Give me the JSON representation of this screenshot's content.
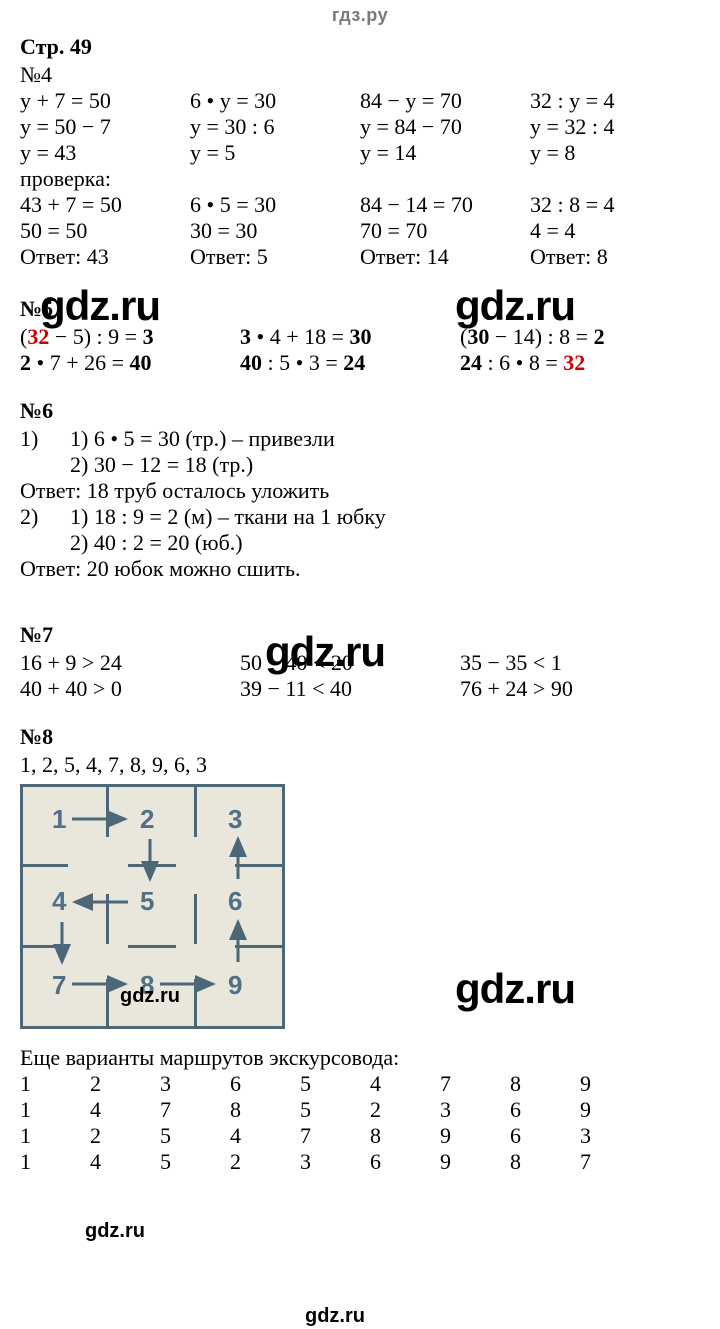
{
  "header": "гдз.ру",
  "page_ref": "Стр. 49",
  "watermarks": {
    "big": "gdz.ru",
    "small": "gdz.ru"
  },
  "p4": {
    "label": "№4",
    "cols": [
      [
        "у + 7 = 50",
        "у = 50 − 7",
        "у = 43"
      ],
      [
        "6 • у = 30",
        "у = 30 : 6",
        "у = 5"
      ],
      [
        "84 − у = 70",
        "у = 84 − 70",
        "у = 14"
      ],
      [
        "32 : у = 4",
        "у = 32 : 4",
        "у = 8"
      ]
    ],
    "check_label": "проверка:",
    "checks": [
      [
        "43 + 7 = 50",
        "50 = 50"
      ],
      [
        "6 • 5 = 30",
        "30 = 30"
      ],
      [
        "84 − 14 = 70",
        "70 = 70"
      ],
      [
        "32 : 8 = 4",
        "4 = 4"
      ]
    ],
    "answers": [
      "Ответ: 43",
      "Ответ: 5",
      "Ответ: 14",
      "Ответ: 8"
    ]
  },
  "p5": {
    "label": "№5",
    "rows": [
      [
        [
          {
            "t": "(",
            "b": false
          },
          {
            "t": "32",
            "r": true
          },
          {
            "t": " − 5) : 9 = ",
            "b": false
          },
          {
            "t": "3",
            "b": true
          }
        ],
        [
          {
            "t": "3",
            "b": true
          },
          {
            "t": " • 4 + 18 = ",
            "b": false
          },
          {
            "t": "30",
            "b": true
          }
        ],
        [
          {
            "t": "(",
            "b": false
          },
          {
            "t": "30",
            "b": true
          },
          {
            "t": " − 14) : 8 = ",
            "b": false
          },
          {
            "t": "2",
            "b": true
          }
        ]
      ],
      [
        [
          {
            "t": "2",
            "b": true
          },
          {
            "t": " • 7 + 26 = ",
            "b": false
          },
          {
            "t": "40",
            "b": true
          }
        ],
        [
          {
            "t": "40",
            "b": true
          },
          {
            "t": " : 5 • 3 = ",
            "b": false
          },
          {
            "t": "24",
            "b": true
          }
        ],
        [
          {
            "t": "24",
            "b": true
          },
          {
            "t": " : 6 • 8 = ",
            "b": false
          },
          {
            "t": "32",
            "r": true
          }
        ]
      ]
    ]
  },
  "p6": {
    "label": "№6",
    "block1_num": "1)",
    "block1": [
      "1) 6 • 5 = 30 (тр.) – привезли",
      "2) 30 − 12 = 18 (тр.)"
    ],
    "ans1": "Ответ: 18 труб осталось уложить",
    "block2_num": "2)",
    "block2": [
      "1) 18 : 9 = 2 (м) – ткани на 1 юбку",
      "2) 40 : 2 = 20 (юб.)"
    ],
    "ans2": "Ответ: 20 юбок можно сшить."
  },
  "p7": {
    "label": "№7",
    "rows": [
      [
        "16 + 9 > 24",
        "50 − 40 < 20",
        "35 − 35 < 1"
      ],
      [
        "40 + 40 > 0",
        "39 − 11 < 40",
        "76 + 24 > 90"
      ]
    ]
  },
  "p8": {
    "label": "№8",
    "sequence": "1, 2, 5, 4, 7, 8, 9, 6, 3",
    "grid": {
      "bg": "#e9e7db",
      "border": "#4c6777",
      "num_color": "#517086",
      "nums": [
        "1",
        "2",
        "3",
        "4",
        "5",
        "6",
        "7",
        "8",
        "9"
      ]
    },
    "extra_label": "Еще варианты маршрутов экскурсовода:",
    "routes": [
      [
        "1",
        "2",
        "3",
        "6",
        "5",
        "4",
        "7",
        "8",
        "9"
      ],
      [
        "1",
        "4",
        "7",
        "8",
        "5",
        "2",
        "3",
        "6",
        "9"
      ],
      [
        "1",
        "2",
        "5",
        "4",
        "7",
        "8",
        "9",
        "6",
        "3"
      ],
      [
        "1",
        "4",
        "5",
        "2",
        "3",
        "6",
        "9",
        "8",
        "7"
      ]
    ]
  }
}
